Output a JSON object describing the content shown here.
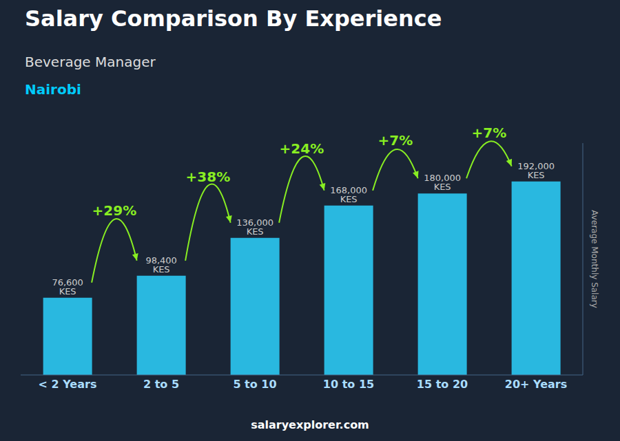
{
  "chart_data": {
    "type": "bar",
    "title": "Salary Comparison By Experience",
    "subtitle": "Beverage Manager",
    "annotations": [
      "Nairobi",
      "salaryexplorer.com"
    ],
    "ylabel": "Average Monthly Salary",
    "categories": [
      "< 2 Years",
      "2 to 5",
      "5 to 10",
      "10 to 15",
      "15 to 20",
      "20+ Years"
    ],
    "values": [
      76600,
      98400,
      136000,
      168000,
      180000,
      192000
    ],
    "value_labels": [
      "76,600 KES",
      "98,400 KES",
      "136,000 KES",
      "168,000 KES",
      "180,000 KES",
      "192,000 KES"
    ],
    "data_labels": true,
    "change_labels": [
      null,
      "+29%",
      "+38%",
      "+24%",
      "+7%",
      "+7%"
    ],
    "color": "#29b8e0",
    "ylim": [
      0,
      230000
    ],
    "tick_labels": "x",
    "grid": false
  }
}
